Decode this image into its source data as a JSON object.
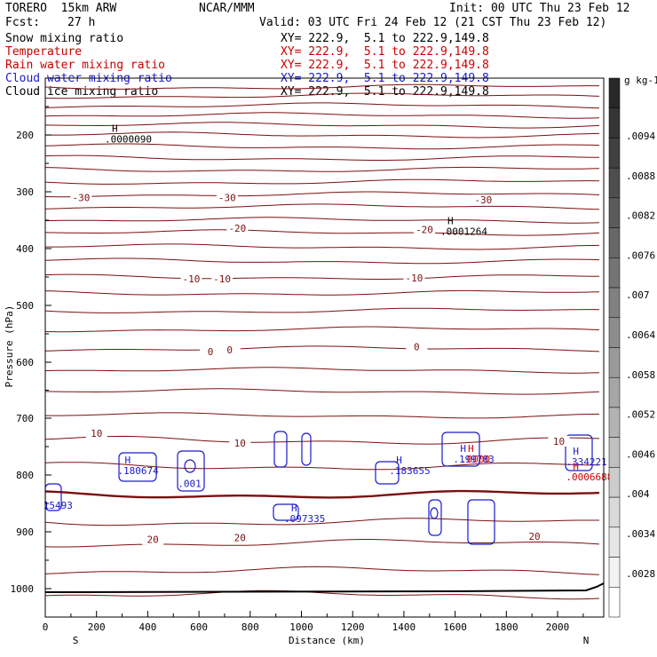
{
  "header": {
    "model": "TORERO  15km ARW",
    "org": "NCAR/MMM",
    "init": "Init: 00 UTC Thu 23 Feb 12",
    "fcst_label": "Fcst:",
    "fcst_value": "27 h",
    "valid": "Valid: 03 UTC Fri 24 Feb 12 (21 CST Thu 23 Feb 12)"
  },
  "fields": [
    {
      "name": "Snow mixing ratio",
      "xy": "XY= 222.9,  5.1 to 222.9,149.8",
      "color": "#000000"
    },
    {
      "name": "Temperature",
      "xy": "XY= 222.9,  5.1 to 222.9,149.8",
      "color": "#cc0000"
    },
    {
      "name": "Rain water mixing ratio",
      "xy": "XY= 222.9,  5.1 to 222.9,149.8",
      "color": "#cc0000"
    },
    {
      "name": "Cloud water mixing ratio",
      "xy": "XY= 222.9,  5.1 to 222.9,149.8",
      "color": "#1a1acc"
    },
    {
      "name": "Cloud ice mixing ratio",
      "xy": "XY= 222.9,  5.1 to 222.9,149.8",
      "color": "#000000"
    }
  ],
  "chart_data": {
    "type": "cross-section",
    "xlabel": "Distance (km)",
    "ylabel": "Pressure (hPa)",
    "xlim": [
      0,
      2180
    ],
    "ylim": [
      1050,
      100
    ],
    "x_ticks": [
      0,
      200,
      400,
      600,
      800,
      1000,
      1200,
      1400,
      1600,
      1800,
      2000
    ],
    "y_ticks": [
      200,
      300,
      400,
      500,
      600,
      700,
      800,
      900,
      1000
    ],
    "x_end_labels": {
      "left": "S",
      "right": "N"
    },
    "colorbar": {
      "unit": "g kg-1",
      "labels": [
        ".0094",
        ".0088",
        ".0082",
        ".0076",
        ".007",
        ".0064",
        ".0058",
        ".0052",
        ".0046",
        ".004",
        ".0034",
        ".0028"
      ]
    },
    "temperature_labels": [
      {
        "text": "-30",
        "x": 140,
        "p": 312
      },
      {
        "text": "-30",
        "x": 710,
        "p": 312
      },
      {
        "text": "-30",
        "x": 1710,
        "p": 316
      },
      {
        "text": "-20",
        "x": 750,
        "p": 366
      },
      {
        "text": "-20",
        "x": 1480,
        "p": 368
      },
      {
        "text": "-10",
        "x": 570,
        "p": 455
      },
      {
        "text": "-10",
        "x": 690,
        "p": 455
      },
      {
        "text": "-10",
        "x": 1440,
        "p": 453
      },
      {
        "text": "0",
        "x": 645,
        "p": 583
      },
      {
        "text": "0",
        "x": 720,
        "p": 580
      },
      {
        "text": "0",
        "x": 1450,
        "p": 574
      },
      {
        "text": "10",
        "x": 200,
        "p": 728
      },
      {
        "text": "10",
        "x": 760,
        "p": 745
      },
      {
        "text": "10",
        "x": 2005,
        "p": 742
      },
      {
        "text": "20",
        "x": 420,
        "p": 915
      },
      {
        "text": "20",
        "x": 760,
        "p": 912
      },
      {
        "text": "20",
        "x": 1910,
        "p": 909
      }
    ],
    "annotations": [
      {
        "mark": "H",
        "value": ".0000090",
        "x": 260,
        "p": 210,
        "color": "#000000"
      },
      {
        "mark": "H",
        "value": ".0001264",
        "x": 1570,
        "p": 373,
        "color": "#000000"
      },
      {
        "mark": "H",
        "value": ".180674",
        "x": 310,
        "p": 795,
        "color": "#1a1acc"
      },
      {
        "mark": "",
        "value": ".001",
        "x": 545,
        "p": 818,
        "color": "#1a1acc"
      },
      {
        "mark": "",
        "value": "15493",
        "x": 20,
        "p": 856,
        "color": "#1a1acc"
      },
      {
        "mark": "H",
        "value": ".097335",
        "x": 960,
        "p": 880,
        "color": "#1a1acc"
      },
      {
        "mark": "H",
        "value": ".183655",
        "x": 1370,
        "p": 795,
        "color": "#1a1acc"
      },
      {
        "mark": "H",
        "value": ".199783",
        "x": 1620,
        "p": 775,
        "color": "#1a1acc"
      },
      {
        "mark": "H",
        "value": ".0000",
        "x": 1650,
        "p": 775,
        "color": "#cc0000"
      },
      {
        "mark": "H",
        "value": ".334221",
        "x": 2060,
        "p": 780,
        "color": "#1a1acc"
      },
      {
        "mark": "H",
        "value": ".0006688",
        "x": 2060,
        "p": 806,
        "color": "#cc0000"
      }
    ]
  }
}
